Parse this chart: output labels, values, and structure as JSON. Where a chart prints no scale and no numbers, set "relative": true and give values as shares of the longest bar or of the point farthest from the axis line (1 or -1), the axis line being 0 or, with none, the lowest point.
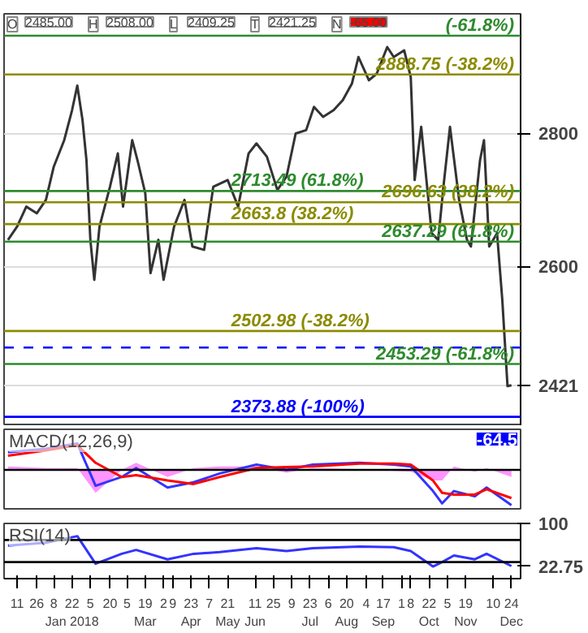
{
  "chart_data": [
    {
      "type": "line",
      "color": "#333333",
      "line_style": "solid",
      "marker": "none",
      "grid": "y",
      "tick_labels": "y",
      "x": [
        "2017-12-04",
        "2017-12-11",
        "2017-12-18",
        "2017-12-26",
        "2018-01-02",
        "2018-01-08",
        "2018-01-16",
        "2018-01-22",
        "2018-01-26",
        "2018-01-30",
        "2018-02-02",
        "2018-02-05",
        "2018-02-08",
        "2018-02-12",
        "2018-02-20",
        "2018-02-26",
        "2018-03-02",
        "2018-03-09",
        "2018-03-13",
        "2018-03-19",
        "2018-03-23",
        "2018-03-29",
        "2018-04-02",
        "2018-04-10",
        "2018-04-18",
        "2018-04-24",
        "2018-05-03",
        "2018-05-10",
        "2018-05-21",
        "2018-05-29",
        "2018-06-06",
        "2018-06-12",
        "2018-06-20",
        "2018-06-28",
        "2018-07-05",
        "2018-07-12",
        "2018-07-20",
        "2018-07-26",
        "2018-08-02",
        "2018-08-10",
        "2018-08-17",
        "2018-08-24",
        "2018-08-29",
        "2018-09-06",
        "2018-09-12",
        "2018-09-20",
        "2018-09-25",
        "2018-10-03",
        "2018-10-08",
        "2018-10-11",
        "2018-10-16",
        "2018-10-24",
        "2018-10-29",
        "2018-11-02",
        "2018-11-07",
        "2018-11-14",
        "2018-11-20",
        "2018-11-23",
        "2018-11-30",
        "2018-12-03",
        "2018-12-07",
        "2018-12-13",
        "2018-12-17",
        "2018-12-21",
        "2018-12-24"
      ],
      "values": [
        2640,
        2660,
        2690,
        2680,
        2700,
        2750,
        2790,
        2835,
        2872,
        2820,
        2760,
        2640,
        2580,
        2660,
        2720,
        2770,
        2690,
        2790,
        2760,
        2710,
        2590,
        2640,
        2580,
        2660,
        2700,
        2630,
        2625,
        2720,
        2730,
        2690,
        2770,
        2785,
        2765,
        2715,
        2735,
        2800,
        2805,
        2840,
        2825,
        2835,
        2850,
        2875,
        2915,
        2880,
        2890,
        2930,
        2915,
        2925,
        2885,
        2730,
        2810,
        2650,
        2640,
        2720,
        2810,
        2700,
        2640,
        2630,
        2760,
        2790,
        2630,
        2650,
        2550,
        2420,
        2421.25
      ],
      "xlim": [
        "2017-12-01",
        "2018-12-31"
      ],
      "ylim": [
        2360,
        2980
      ],
      "yticks": [
        2600,
        2800,
        {
          "value": 2421.25,
          "label": "2421"
        }
      ],
      "ref_lines": [
        {
          "axis": "y",
          "value": 2947,
          "label": null,
          "color": "#2e8b2e"
        },
        {
          "axis": "y",
          "value": 2888.75,
          "label": "2888.75 (-38.2%)",
          "color": "#8b8b00"
        },
        {
          "axis": "y",
          "value": 2713.49,
          "label": "2713.49 (61.8%)",
          "color": "#2e8b2e"
        },
        {
          "axis": "y",
          "value": 2696.63,
          "label": "2696.63 (38.2%)",
          "color": "#8b8b00"
        },
        {
          "axis": "y",
          "value": 2663.8,
          "label": "2663.8 (38.2%)",
          "color": "#8b8b00"
        },
        {
          "axis": "y",
          "value": 2637.29,
          "label": "2637.29 (61.8%)",
          "color": "#2e8b2e"
        },
        {
          "axis": "y",
          "value": 2502.98,
          "label": "2502.98 (-38.2%)",
          "color": "#8b8b00"
        },
        {
          "axis": "y",
          "value": 2478,
          "label": null,
          "color": "#0000ff",
          "line_style": "dashed"
        },
        {
          "axis": "y",
          "value": 2453.29,
          "label": "2453.29 (-61.8%)",
          "color": "#2e8b2e"
        },
        {
          "axis": "y",
          "value": 2373.88,
          "label": "2373.88 (-100%)",
          "color": "#0000ff"
        }
      ],
      "annotations": [
        "O",
        "2485.00",
        "H",
        "2508.00",
        "L",
        "2409.25",
        "T",
        "2421.25",
        "N",
        "-65.00",
        {
          "text": "(-61.8%)",
          "x": "2018-12-31",
          "y": 2947
        }
      ]
    },
    {
      "type": "line",
      "relative": true,
      "tick_labels": false,
      "title": "MACD(12,26,9)",
      "annotations": [
        "-64.5"
      ],
      "x": [
        "2017-12-04",
        "2018-01-02",
        "2018-01-26",
        "2018-02-09",
        "2018-03-01",
        "2018-03-12",
        "2018-04-05",
        "2018-04-25",
        "2018-05-15",
        "2018-06-12",
        "2018-07-05",
        "2018-07-25",
        "2018-08-30",
        "2018-09-25",
        "2018-10-08",
        "2018-10-25",
        "2018-11-01",
        "2018-11-10",
        "2018-11-26",
        "2018-12-05",
        "2018-12-24"
      ],
      "xlim": [
        "2017-12-01",
        "2018-12-31"
      ],
      "ref_lines": [
        {
          "axis": "y",
          "value": 0,
          "label": null,
          "color": "#000000"
        }
      ],
      "series": [
        {
          "type": "area",
          "color": "#ff66ff",
          "values": [
            0.1,
            0.05,
            0.05,
            -0.65,
            0,
            0.2,
            -0.2,
            0.05,
            0.1,
            0.1,
            -0.08,
            0.05,
            0.02,
            -0.03,
            -0.05,
            -0.3,
            -0.3,
            0.1,
            -0.05,
            0.05,
            -0.2
          ]
        },
        {
          "type": "line",
          "color": "#3333ff",
          "values": [
            0.5,
            0.6,
            0.75,
            -0.45,
            -0.2,
            0.05,
            -0.5,
            -0.35,
            -0.1,
            0.15,
            0,
            0.15,
            0.2,
            0.15,
            0.1,
            -0.6,
            -0.95,
            -0.6,
            -0.75,
            -0.5,
            -1.0
          ]
        },
        {
          "type": "line",
          "color": "#ff0000",
          "values": [
            0.4,
            0.55,
            0.7,
            0.2,
            -0.2,
            -0.15,
            -0.3,
            -0.4,
            -0.2,
            0.05,
            0.08,
            0.1,
            0.18,
            0.18,
            0.15,
            -0.3,
            -0.65,
            -0.7,
            -0.7,
            -0.55,
            -0.8
          ]
        }
      ]
    },
    {
      "type": "line",
      "title": "RSI(14)",
      "color": "#3333ff",
      "x": [
        "2017-12-04",
        "2018-01-02",
        "2018-01-26",
        "2018-02-09",
        "2018-03-01",
        "2018-03-12",
        "2018-04-05",
        "2018-04-25",
        "2018-05-15",
        "2018-06-12",
        "2018-07-05",
        "2018-07-25",
        "2018-08-30",
        "2018-09-25",
        "2018-10-08",
        "2018-10-25",
        "2018-11-01",
        "2018-11-10",
        "2018-11-26",
        "2018-12-05",
        "2018-12-24"
      ],
      "values": [
        60,
        65,
        77,
        27,
        45,
        52,
        35,
        45,
        48,
        55,
        50,
        55,
        58,
        57,
        50,
        22,
        30,
        42,
        35,
        45,
        22.75
      ],
      "xlim": [
        "2017-12-01",
        "2018-12-31"
      ],
      "ylim": [
        0,
        100
      ],
      "yticks": [
        100,
        22.75
      ],
      "ref_lines": [
        {
          "axis": "y",
          "value": 70,
          "label": null,
          "color": "#000000"
        },
        {
          "axis": "y",
          "value": 30,
          "label": null,
          "color": "#000000"
        }
      ],
      "xticks": [
        {
          "value": "2017-12-11",
          "label": "11"
        },
        {
          "value": "2017-12-26",
          "label": "26"
        },
        {
          "value": "2018-01-08",
          "label": "8"
        },
        {
          "value": "2018-01-22",
          "label": "22\nJan 2018"
        },
        {
          "value": "2018-02-05",
          "label": "5"
        },
        {
          "value": "2018-02-20",
          "label": "20"
        },
        {
          "value": "2018-03-05",
          "label": "5"
        },
        {
          "value": "2018-03-19",
          "label": "19\nMar"
        },
        {
          "value": "2018-04-02",
          "label": "2"
        },
        {
          "value": "2018-04-09",
          "label": "9"
        },
        {
          "value": "2018-04-23",
          "label": "23\nApr"
        },
        {
          "value": "2018-05-07",
          "label": "7"
        },
        {
          "value": "2018-05-21",
          "label": "21\nMay"
        },
        {
          "value": "2018-06-11",
          "label": "11\nJun"
        },
        {
          "value": "2018-06-25",
          "label": "25"
        },
        {
          "value": "2018-07-09",
          "label": "9"
        },
        {
          "value": "2018-07-23",
          "label": "23\nJul"
        },
        {
          "value": "2018-08-06",
          "label": "6"
        },
        {
          "value": "2018-08-20",
          "label": "20\nAug"
        },
        {
          "value": "2018-09-04",
          "label": "4"
        },
        {
          "value": "2018-09-17",
          "label": "17\nSep"
        },
        {
          "value": "2018-10-01",
          "label": "1"
        },
        {
          "value": "2018-10-08",
          "label": "8"
        },
        {
          "value": "2018-10-22",
          "label": "22\nOct"
        },
        {
          "value": "2018-11-05",
          "label": "5"
        },
        {
          "value": "2018-11-19",
          "label": "19\nNov"
        },
        {
          "value": "2018-12-10",
          "label": "10"
        },
        {
          "value": "2018-12-24",
          "label": "24\nDec"
        }
      ]
    }
  ]
}
